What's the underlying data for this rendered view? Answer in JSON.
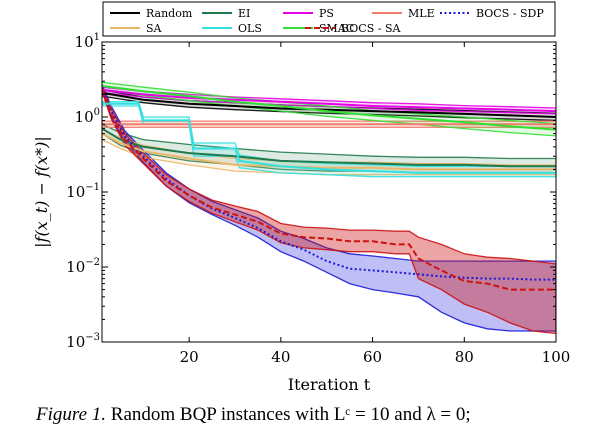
{
  "caption": {
    "label": "Figure 1.",
    "text": "Random BQP instances with Lᶜ = 10 and λ = 0;"
  },
  "chart_data": {
    "type": "line",
    "xlabel": "Iteration t",
    "ylabel": "|f(x_t) − f(x*)|",
    "xlim": [
      1,
      100
    ],
    "ylim": [
      0.001,
      10
    ],
    "yscale": "log",
    "xticks": [
      20,
      40,
      60,
      80,
      100
    ],
    "yticks": [
      {
        "value": 0.001,
        "base": "10",
        "exp": "−3"
      },
      {
        "value": 0.01,
        "base": "10",
        "exp": "−2"
      },
      {
        "value": 0.1,
        "base": "10",
        "exp": "−1"
      },
      {
        "value": 1,
        "base": "10",
        "exp": "0"
      },
      {
        "value": 10,
        "base": "10",
        "exp": "1"
      }
    ],
    "grid": false,
    "legend_position": "top",
    "series": [
      {
        "name": "Random",
        "color": "#000000",
        "dash": "",
        "x": [
          1,
          10,
          20,
          30,
          40,
          50,
          60,
          70,
          80,
          90,
          100
        ],
        "mean": [
          2.1,
          1.7,
          1.5,
          1.4,
          1.3,
          1.25,
          1.2,
          1.15,
          1.1,
          1.05,
          1.0
        ],
        "upper": [
          2.3,
          1.85,
          1.65,
          1.55,
          1.45,
          1.38,
          1.32,
          1.27,
          1.22,
          1.17,
          1.12
        ],
        "lower": [
          1.9,
          1.55,
          1.35,
          1.25,
          1.18,
          1.12,
          1.08,
          1.03,
          0.98,
          0.94,
          0.9
        ]
      },
      {
        "name": "EI",
        "color": "#1f7a4d",
        "dash": "",
        "x": [
          1,
          5,
          10,
          20,
          30,
          40,
          50,
          60,
          70,
          80,
          90,
          100
        ],
        "mean": [
          0.7,
          0.5,
          0.4,
          0.33,
          0.3,
          0.26,
          0.25,
          0.24,
          0.23,
          0.23,
          0.22,
          0.22
        ],
        "upper": [
          0.8,
          0.62,
          0.5,
          0.43,
          0.38,
          0.34,
          0.32,
          0.3,
          0.29,
          0.29,
          0.28,
          0.28
        ],
        "lower": [
          0.6,
          0.42,
          0.33,
          0.26,
          0.23,
          0.2,
          0.19,
          0.19,
          0.18,
          0.18,
          0.18,
          0.18
        ]
      },
      {
        "name": "PS",
        "color": "#e600e6",
        "dash": "",
        "x": [
          1,
          10,
          20,
          30,
          40,
          50,
          60,
          70,
          80,
          90,
          100
        ],
        "mean": [
          2.3,
          2.0,
          1.8,
          1.7,
          1.6,
          1.5,
          1.4,
          1.35,
          1.3,
          1.25,
          1.2
        ],
        "upper": [
          2.5,
          2.2,
          2.0,
          1.85,
          1.75,
          1.65,
          1.55,
          1.5,
          1.42,
          1.37,
          1.32
        ],
        "lower": [
          2.1,
          1.85,
          1.65,
          1.55,
          1.45,
          1.38,
          1.3,
          1.22,
          1.18,
          1.14,
          1.1
        ]
      },
      {
        "name": "MLE",
        "color": "#f07c6c",
        "dash": "",
        "x": [
          1,
          10,
          20,
          30,
          40,
          50,
          60,
          70,
          80,
          90,
          100
        ],
        "mean": [
          0.8,
          0.8,
          0.8,
          0.8,
          0.8,
          0.8,
          0.8,
          0.8,
          0.8,
          0.8,
          0.8
        ],
        "upper": [
          0.88,
          0.88,
          0.88,
          0.88,
          0.88,
          0.88,
          0.88,
          0.88,
          0.88,
          0.88,
          0.88
        ],
        "lower": [
          0.73,
          0.73,
          0.73,
          0.73,
          0.73,
          0.73,
          0.73,
          0.73,
          0.73,
          0.73,
          0.73
        ]
      },
      {
        "name": "BOCS - SDP",
        "color": "#1a1adb",
        "dash": "2,2.5",
        "x": [
          1,
          3,
          6,
          10,
          15,
          20,
          25,
          30,
          35,
          40,
          45,
          50,
          55,
          60,
          65,
          70,
          75,
          80,
          85,
          90,
          95,
          100
        ],
        "mean": [
          2.5,
          1.2,
          0.55,
          0.3,
          0.15,
          0.09,
          0.06,
          0.045,
          0.033,
          0.022,
          0.017,
          0.012,
          0.0095,
          0.009,
          0.0085,
          0.008,
          0.0075,
          0.0072,
          0.007,
          0.007,
          0.0068,
          0.0068
        ],
        "upper": [
          2.7,
          1.4,
          0.65,
          0.36,
          0.18,
          0.11,
          0.075,
          0.058,
          0.045,
          0.03,
          0.024,
          0.018,
          0.015,
          0.014,
          0.013,
          0.012,
          0.012,
          0.012,
          0.012,
          0.012,
          0.012,
          0.012
        ],
        "lower": [
          2.3,
          1.0,
          0.46,
          0.25,
          0.12,
          0.072,
          0.05,
          0.036,
          0.025,
          0.016,
          0.012,
          0.0085,
          0.006,
          0.005,
          0.0045,
          0.004,
          0.0025,
          0.0018,
          0.0015,
          0.0014,
          0.0014,
          0.0014
        ]
      },
      {
        "name": "SA",
        "color": "#e8b86a",
        "dash": "",
        "x": [
          1,
          5,
          10,
          20,
          30,
          40,
          50,
          60,
          70,
          80,
          90,
          100
        ],
        "mean": [
          0.6,
          0.45,
          0.35,
          0.28,
          0.23,
          0.22,
          0.21,
          0.21,
          0.2,
          0.2,
          0.2,
          0.2
        ],
        "upper": [
          0.7,
          0.52,
          0.42,
          0.33,
          0.28,
          0.26,
          0.25,
          0.25,
          0.24,
          0.24,
          0.23,
          0.23
        ],
        "lower": [
          0.5,
          0.38,
          0.29,
          0.23,
          0.19,
          0.18,
          0.17,
          0.17,
          0.17,
          0.17,
          0.17,
          0.17
        ]
      },
      {
        "name": "OLS",
        "color": "#33e0e0",
        "dash": "",
        "x": [
          1,
          9,
          10,
          20,
          21,
          30,
          31,
          40,
          50,
          60,
          70,
          80,
          90,
          100
        ],
        "mean": [
          1.5,
          1.5,
          0.9,
          0.9,
          0.38,
          0.38,
          0.26,
          0.22,
          0.2,
          0.19,
          0.18,
          0.18,
          0.18,
          0.18
        ],
        "upper": [
          1.6,
          1.6,
          1.0,
          1.0,
          0.45,
          0.45,
          0.31,
          0.26,
          0.24,
          0.23,
          0.22,
          0.22,
          0.22,
          0.22
        ],
        "lower": [
          1.4,
          1.4,
          0.8,
          0.8,
          0.3,
          0.3,
          0.21,
          0.18,
          0.17,
          0.16,
          0.16,
          0.16,
          0.16,
          0.16
        ]
      },
      {
        "name": "SMAC",
        "color": "#33dd33",
        "dash": "",
        "x": [
          1,
          10,
          20,
          30,
          40,
          50,
          60,
          70,
          80,
          90,
          100
        ],
        "mean": [
          2.6,
          2.2,
          1.9,
          1.6,
          1.4,
          1.2,
          1.05,
          0.95,
          0.85,
          0.75,
          0.68
        ],
        "upper": [
          2.9,
          2.5,
          2.15,
          1.8,
          1.6,
          1.4,
          1.22,
          1.1,
          1.0,
          0.9,
          0.82
        ],
        "lower": [
          2.3,
          1.95,
          1.65,
          1.4,
          1.2,
          1.02,
          0.9,
          0.8,
          0.7,
          0.62,
          0.56
        ]
      },
      {
        "name": "BOCS - SA",
        "color": "#cc1111",
        "dash": "6,3",
        "x": [
          1,
          3,
          6,
          10,
          15,
          20,
          25,
          30,
          35,
          40,
          45,
          50,
          55,
          60,
          65,
          68,
          70,
          75,
          80,
          85,
          90,
          95,
          100
        ],
        "mean": [
          2.4,
          1.1,
          0.5,
          0.28,
          0.14,
          0.09,
          0.062,
          0.05,
          0.04,
          0.028,
          0.025,
          0.024,
          0.022,
          0.022,
          0.02,
          0.02,
          0.013,
          0.009,
          0.0065,
          0.006,
          0.005,
          0.005,
          0.005
        ],
        "upper": [
          2.6,
          1.3,
          0.6,
          0.33,
          0.17,
          0.11,
          0.078,
          0.065,
          0.055,
          0.038,
          0.034,
          0.033,
          0.031,
          0.031,
          0.03,
          0.03,
          0.025,
          0.02,
          0.015,
          0.0135,
          0.013,
          0.012,
          0.011
        ],
        "lower": [
          2.2,
          0.95,
          0.42,
          0.24,
          0.12,
          0.075,
          0.052,
          0.04,
          0.031,
          0.021,
          0.018,
          0.017,
          0.016,
          0.016,
          0.015,
          0.015,
          0.007,
          0.005,
          0.0032,
          0.0025,
          0.0018,
          0.0014,
          0.0013
        ]
      }
    ]
  }
}
